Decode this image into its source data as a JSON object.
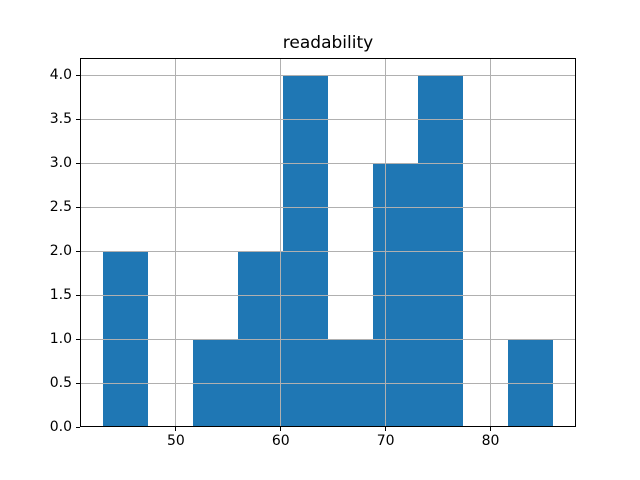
{
  "chart_data": {
    "type": "histogram",
    "title": "readability",
    "xlabel": "",
    "ylabel": "",
    "bin_edges": [
      43.0,
      47.3,
      51.6,
      55.9,
      60.2,
      64.5,
      68.8,
      73.1,
      77.4,
      81.7,
      86.0
    ],
    "counts": [
      2,
      0,
      1,
      2,
      4,
      1,
      3,
      4,
      0,
      1
    ],
    "xlim": [
      40.85,
      88.15
    ],
    "ylim": [
      0.0,
      4.2
    ],
    "x_ticks": [
      50,
      60,
      70,
      80
    ],
    "x_tick_labels": [
      "50",
      "60",
      "70",
      "80"
    ],
    "y_ticks": [
      0.0,
      0.5,
      1.0,
      1.5,
      2.0,
      2.5,
      3.0,
      3.5,
      4.0
    ],
    "y_tick_labels": [
      "0.0",
      "0.5",
      "1.0",
      "1.5",
      "2.0",
      "2.5",
      "3.0",
      "3.5",
      "4.0"
    ],
    "grid": true,
    "grid_above_bars": true,
    "legend": null,
    "colors": {
      "bar": "#1f77b4",
      "grid": "#b0b0b0",
      "spine": "#000000",
      "text": "#000000",
      "background": "#ffffff"
    }
  }
}
